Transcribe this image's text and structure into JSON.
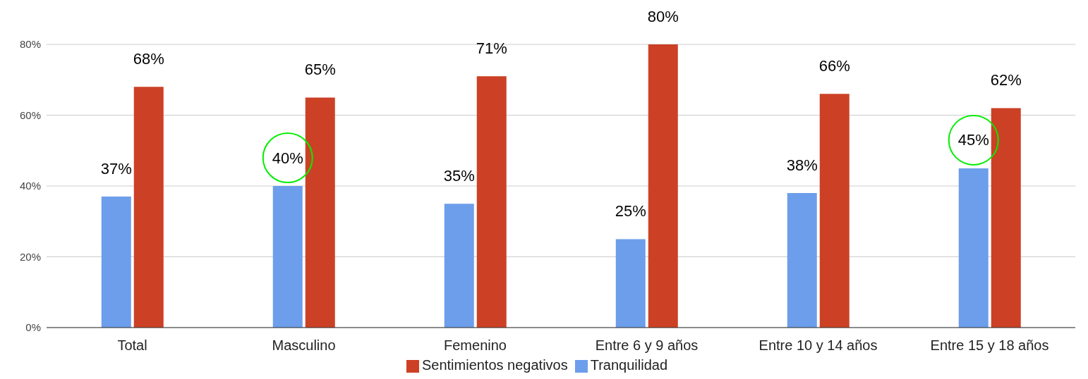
{
  "chart_data": {
    "type": "bar",
    "categories": [
      "Total",
      "Masculino",
      "Femenino",
      "Entre 6 y 9 años",
      "Entre 10 y 14 años",
      "Entre 15 y 18 años"
    ],
    "series": [
      {
        "name": "Tranquilidad",
        "color": "#6d9eeb",
        "values": [
          37,
          40,
          35,
          25,
          38,
          45
        ],
        "value_labels": [
          "37%",
          "40%",
          "35%",
          "25%",
          "38%",
          "45%"
        ]
      },
      {
        "name": "Sentimientos negativos",
        "color": "#cc4125",
        "values": [
          68,
          65,
          71,
          80,
          66,
          62
        ],
        "value_labels": [
          "68%",
          "65%",
          "71%",
          "80%",
          "66%",
          "62%"
        ]
      }
    ],
    "ylim": [
      0,
      80
    ],
    "yticks": [
      {
        "value": 0,
        "label": "0%"
      },
      {
        "value": 20,
        "label": "20%"
      },
      {
        "value": 40,
        "label": "40%"
      },
      {
        "value": 60,
        "label": "60%"
      },
      {
        "value": 80,
        "label": "80%"
      }
    ],
    "grid": "y",
    "legend": "bottom"
  }
}
